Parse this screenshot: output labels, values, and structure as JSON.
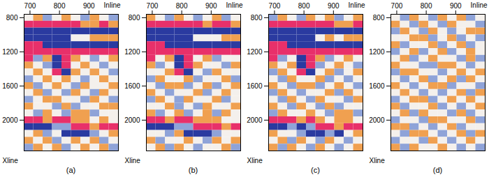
{
  "chart_data": [
    {
      "type": "heatmap",
      "label": "(a)",
      "x_label": "Inline",
      "y_label": "Xline",
      "xlim": [
        680,
        1000
      ],
      "ylim": [
        760,
        2360
      ],
      "xticks": [
        700,
        800,
        900
      ],
      "yticks": [
        800,
        1200,
        1600,
        2000
      ],
      "x_edges": [
        680,
        712,
        744,
        776,
        808,
        840,
        872,
        904,
        936,
        968,
        1000
      ],
      "y_edges": [
        760,
        840,
        920,
        1000,
        1080,
        1160,
        1240,
        1320,
        1400,
        1480,
        1560,
        1640,
        1720,
        1800,
        1880,
        1960,
        2040,
        2120,
        2200,
        2280,
        2360
      ],
      "levels": [
        -2,
        -1,
        0,
        1,
        2
      ],
      "colors": [
        "#2a3aa0",
        "#8fa3d8",
        "#f4f0ec",
        "#f0a050",
        "#e8306a"
      ],
      "cells": [
        [
          0,
          1,
          -1,
          0,
          1,
          0,
          -1,
          1,
          0,
          -1
        ],
        [
          2,
          2,
          2,
          2,
          2,
          2,
          1,
          1,
          2,
          1
        ],
        [
          -2,
          -2,
          -2,
          -2,
          -2,
          -2,
          -2,
          -2,
          -2,
          -2
        ],
        [
          -2,
          -2,
          -2,
          -2,
          -2,
          0,
          0,
          1,
          1,
          1
        ],
        [
          2,
          2,
          -2,
          -2,
          -2,
          -2,
          -2,
          -2,
          -2,
          -2
        ],
        [
          2,
          2,
          2,
          2,
          2,
          2,
          2,
          2,
          2,
          2
        ],
        [
          2,
          -1,
          1,
          -2,
          2,
          1,
          0,
          -1,
          0,
          1
        ],
        [
          1,
          0,
          -1,
          -2,
          2,
          0,
          1,
          0,
          -1,
          0
        ],
        [
          0,
          1,
          0,
          2,
          -2,
          1,
          0,
          1,
          0,
          -1
        ],
        [
          -1,
          0,
          1,
          0,
          1,
          0,
          -1,
          0,
          1,
          0
        ],
        [
          1,
          -1,
          0,
          1,
          0,
          -1,
          1,
          0,
          0,
          1
        ],
        [
          0,
          1,
          -1,
          0,
          -1,
          1,
          0,
          -1,
          1,
          0
        ],
        [
          -1,
          0,
          1,
          1,
          0,
          0,
          -1,
          1,
          0,
          -1
        ],
        [
          1,
          0,
          0,
          -1,
          1,
          -1,
          0,
          0,
          1,
          1
        ],
        [
          0,
          -1,
          1,
          0,
          -1,
          1,
          1,
          -1,
          0,
          0
        ],
        [
          2,
          2,
          1,
          2,
          2,
          1,
          1,
          0,
          1,
          0
        ],
        [
          -2,
          -2,
          -2,
          -1,
          -1,
          2,
          2,
          1,
          2,
          2
        ],
        [
          0,
          1,
          -1,
          0,
          -2,
          -2,
          -2,
          -1,
          0,
          1
        ],
        [
          1,
          0,
          1,
          -1,
          0,
          1,
          0,
          1,
          -1,
          0
        ],
        [
          -1,
          1,
          0,
          1,
          -1,
          0,
          1,
          0,
          1,
          -1
        ]
      ]
    },
    {
      "type": "heatmap",
      "label": "(b)",
      "x_label": "Inline",
      "y_label": "Xline",
      "xlim": [
        680,
        1000
      ],
      "ylim": [
        760,
        2360
      ],
      "xticks": [
        700,
        800,
        900
      ],
      "yticks": [
        800,
        1200,
        1600,
        2000
      ],
      "x_edges": [
        680,
        712,
        744,
        776,
        808,
        840,
        872,
        904,
        936,
        968,
        1000
      ],
      "y_edges": [
        760,
        840,
        920,
        1000,
        1080,
        1160,
        1240,
        1320,
        1400,
        1480,
        1560,
        1640,
        1720,
        1800,
        1880,
        1960,
        2040,
        2120,
        2200,
        2280,
        2360
      ],
      "levels": [
        -2,
        -1,
        0,
        1,
        2
      ],
      "colors": [
        "#2a3aa0",
        "#8fa3d8",
        "#f4f0ec",
        "#f0a050",
        "#e8306a"
      ],
      "cells": [
        [
          1,
          0,
          -1,
          1,
          0,
          -1,
          0,
          1,
          -1,
          0
        ],
        [
          2,
          2,
          2,
          2,
          2,
          2,
          1,
          2,
          2,
          1
        ],
        [
          -2,
          -2,
          -2,
          -2,
          -2,
          -2,
          -2,
          -2,
          -2,
          -2
        ],
        [
          -2,
          -2,
          -2,
          -2,
          -2,
          0,
          0,
          0,
          1,
          1
        ],
        [
          2,
          2,
          -2,
          -2,
          -2,
          -2,
          -2,
          -2,
          -2,
          -2
        ],
        [
          2,
          2,
          2,
          2,
          2,
          2,
          2,
          2,
          2,
          2
        ],
        [
          2,
          0,
          1,
          -2,
          2,
          0,
          1,
          -1,
          0,
          0
        ],
        [
          1,
          -1,
          0,
          -2,
          2,
          1,
          0,
          0,
          -1,
          1
        ],
        [
          0,
          0,
          1,
          2,
          -2,
          0,
          -1,
          1,
          0,
          0
        ],
        [
          -1,
          1,
          0,
          0,
          1,
          -1,
          0,
          0,
          1,
          -1
        ],
        [
          0,
          -1,
          1,
          1,
          -1,
          0,
          1,
          -1,
          0,
          1
        ],
        [
          1,
          0,
          -1,
          0,
          0,
          1,
          -1,
          0,
          1,
          0
        ],
        [
          -1,
          1,
          0,
          -1,
          1,
          0,
          0,
          1,
          -1,
          0
        ],
        [
          0,
          0,
          1,
          -1,
          0,
          -1,
          1,
          0,
          0,
          1
        ],
        [
          1,
          -1,
          0,
          1,
          -1,
          0,
          1,
          -1,
          1,
          0
        ],
        [
          2,
          2,
          1,
          2,
          2,
          1,
          1,
          1,
          0,
          0
        ],
        [
          -2,
          -2,
          -2,
          -1,
          -1,
          2,
          2,
          2,
          1,
          2
        ],
        [
          0,
          0,
          -1,
          1,
          -2,
          -2,
          -2,
          -1,
          0,
          0
        ],
        [
          1,
          -1,
          0,
          0,
          1,
          0,
          -1,
          1,
          0,
          1
        ],
        [
          0,
          1,
          -1,
          1,
          0,
          -1,
          0,
          0,
          1,
          -1
        ]
      ]
    },
    {
      "type": "heatmap",
      "label": "(c)",
      "x_label": "Inline",
      "y_label": "Xline",
      "xlim": [
        680,
        1000
      ],
      "ylim": [
        760,
        2360
      ],
      "xticks": [
        700,
        800,
        900
      ],
      "yticks": [
        800,
        1200,
        1600,
        2000
      ],
      "x_edges": [
        680,
        712,
        744,
        776,
        808,
        840,
        872,
        904,
        936,
        968,
        1000
      ],
      "y_edges": [
        760,
        840,
        920,
        1000,
        1080,
        1160,
        1240,
        1320,
        1400,
        1480,
        1560,
        1640,
        1720,
        1800,
        1880,
        1960,
        2040,
        2120,
        2200,
        2280,
        2360
      ],
      "levels": [
        -2,
        -1,
        0,
        1,
        2
      ],
      "colors": [
        "#2a3aa0",
        "#8fa3d8",
        "#f4f0ec",
        "#f0a050",
        "#e8306a"
      ],
      "cells": [
        [
          -1,
          1,
          0,
          -1,
          1,
          0,
          1,
          -1,
          0,
          1
        ],
        [
          2,
          2,
          2,
          2,
          2,
          2,
          2,
          1,
          1,
          2
        ],
        [
          -2,
          -2,
          -2,
          -2,
          -2,
          -2,
          -2,
          -2,
          -2,
          -2
        ],
        [
          -2,
          -2,
          -2,
          -2,
          -2,
          0,
          1,
          0,
          1,
          1
        ],
        [
          2,
          2,
          -2,
          -2,
          -2,
          -2,
          -2,
          -2,
          -2,
          -2
        ],
        [
          2,
          2,
          2,
          2,
          2,
          2,
          2,
          2,
          2,
          2
        ],
        [
          2,
          -1,
          0,
          -2,
          2,
          1,
          -1,
          0,
          1,
          0
        ],
        [
          1,
          0,
          1,
          -2,
          2,
          -1,
          0,
          1,
          0,
          -1
        ],
        [
          -1,
          1,
          0,
          2,
          -2,
          0,
          1,
          -1,
          0,
          1
        ],
        [
          0,
          -1,
          1,
          0,
          0,
          1,
          -1,
          0,
          -1,
          0
        ],
        [
          1,
          0,
          -1,
          1,
          1,
          -1,
          0,
          1,
          0,
          -1
        ],
        [
          -1,
          1,
          0,
          -1,
          0,
          0,
          1,
          -1,
          1,
          0
        ],
        [
          0,
          -1,
          1,
          0,
          -1,
          1,
          0,
          0,
          -1,
          1
        ],
        [
          1,
          0,
          -1,
          1,
          0,
          -1,
          1,
          -1,
          0,
          0
        ],
        [
          -1,
          1,
          0,
          0,
          1,
          0,
          -1,
          1,
          1,
          -1
        ],
        [
          2,
          2,
          2,
          1,
          2,
          1,
          0,
          1,
          1,
          0
        ],
        [
          -2,
          -2,
          -1,
          -2,
          -1,
          2,
          2,
          1,
          2,
          2
        ],
        [
          1,
          0,
          0,
          -1,
          -2,
          -2,
          -1,
          -2,
          0,
          1
        ],
        [
          0,
          1,
          -1,
          1,
          0,
          -1,
          1,
          0,
          -1,
          0
        ],
        [
          1,
          -1,
          1,
          0,
          -1,
          1,
          0,
          -1,
          0,
          1
        ]
      ]
    },
    {
      "type": "heatmap",
      "label": "(d)",
      "x_label": "Inline",
      "y_label": "Xline",
      "xlim": [
        680,
        1000
      ],
      "ylim": [
        760,
        2360
      ],
      "xticks": [
        700,
        800,
        900
      ],
      "yticks": [
        800,
        1200,
        1600,
        2000
      ],
      "x_edges": [
        680,
        712,
        744,
        776,
        808,
        840,
        872,
        904,
        936,
        968,
        1000
      ],
      "y_edges": [
        760,
        840,
        920,
        1000,
        1080,
        1160,
        1240,
        1320,
        1400,
        1480,
        1560,
        1640,
        1720,
        1800,
        1880,
        1960,
        2040,
        2120,
        2200,
        2280,
        2360
      ],
      "levels": [
        -2,
        -1,
        0,
        1,
        2
      ],
      "colors": [
        "#2a3aa0",
        "#8fa3d8",
        "#f4f0ec",
        "#f0a050",
        "#e8306a"
      ],
      "cells": [
        [
          0,
          -1,
          1,
          0,
          -1,
          1,
          0,
          1,
          -1,
          0
        ],
        [
          1,
          0,
          -1,
          1,
          0,
          -1,
          1,
          0,
          0,
          -1
        ],
        [
          -1,
          1,
          0,
          -1,
          1,
          0,
          -1,
          0,
          1,
          1
        ],
        [
          0,
          0,
          1,
          1,
          -1,
          0,
          1,
          -1,
          0,
          -1
        ],
        [
          1,
          -1,
          0,
          0,
          1,
          -1,
          0,
          1,
          -1,
          0
        ],
        [
          -1,
          0,
          1,
          -1,
          0,
          1,
          -1,
          0,
          1,
          0
        ],
        [
          0,
          1,
          -1,
          0,
          1,
          0,
          0,
          -1,
          1,
          -1
        ],
        [
          1,
          0,
          0,
          -1,
          -1,
          1,
          1,
          0,
          -1,
          0
        ],
        [
          -1,
          1,
          1,
          0,
          0,
          -1,
          0,
          1,
          0,
          1
        ],
        [
          0,
          -1,
          0,
          1,
          -1,
          0,
          1,
          -1,
          1,
          0
        ],
        [
          1,
          0,
          -1,
          0,
          1,
          1,
          -1,
          0,
          0,
          -1
        ],
        [
          0,
          1,
          0,
          -1,
          0,
          -1,
          0,
          1,
          -1,
          1
        ],
        [
          -1,
          0,
          1,
          1,
          -1,
          0,
          1,
          0,
          1,
          0
        ],
        [
          1,
          -1,
          0,
          0,
          1,
          -1,
          0,
          -1,
          0,
          1
        ],
        [
          0,
          1,
          -1,
          1,
          0,
          0,
          -1,
          1,
          -1,
          0
        ],
        [
          -1,
          0,
          0,
          -1,
          1,
          1,
          0,
          0,
          1,
          -1
        ],
        [
          1,
          1,
          -1,
          0,
          -1,
          0,
          1,
          -1,
          0,
          0
        ],
        [
          0,
          -1,
          1,
          1,
          0,
          -1,
          0,
          1,
          -1,
          1
        ],
        [
          -1,
          0,
          0,
          -1,
          1,
          0,
          -1,
          0,
          1,
          0
        ],
        [
          1,
          -1,
          1,
          0,
          0,
          1,
          0,
          -1,
          0,
          -1
        ]
      ]
    }
  ]
}
